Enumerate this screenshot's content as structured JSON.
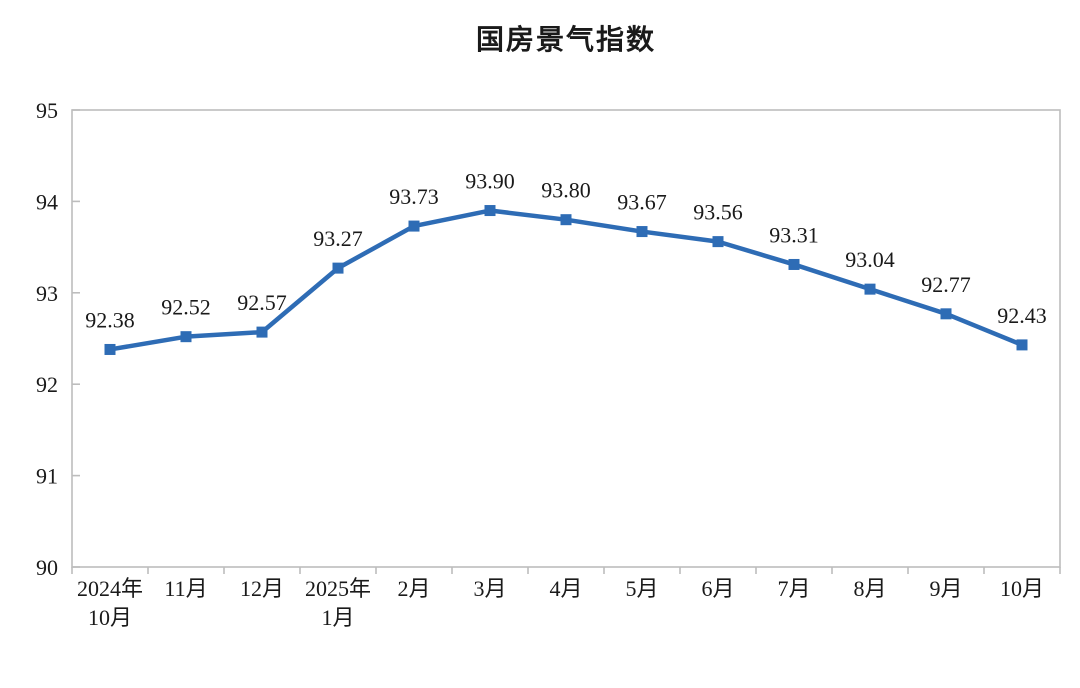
{
  "page": {
    "title": "国房景气指数"
  },
  "colors": {
    "line": "#2e6cb5",
    "marker": "#2e6cb5",
    "axis": "#bdbdbd",
    "text": "#1a1a1a",
    "background": "#ffffff"
  },
  "chart_data": {
    "type": "line",
    "title": "国房景气指数",
    "categories": [
      [
        "2024年",
        "10月"
      ],
      [
        "11月"
      ],
      [
        "12月"
      ],
      [
        "2025年",
        "1月"
      ],
      [
        "2月"
      ],
      [
        "3月"
      ],
      [
        "4月"
      ],
      [
        "5月"
      ],
      [
        "6月"
      ],
      [
        "7月"
      ],
      [
        "8月"
      ],
      [
        "9月"
      ],
      [
        "10月"
      ]
    ],
    "values": [
      92.38,
      92.52,
      92.57,
      93.27,
      93.73,
      93.9,
      93.8,
      93.67,
      93.56,
      93.31,
      93.04,
      92.77,
      92.43
    ],
    "data_labels": [
      "92.38",
      "92.52",
      "92.57",
      "93.27",
      "93.73",
      "93.90",
      "93.80",
      "93.67",
      "93.56",
      "93.31",
      "93.04",
      "92.77",
      "92.43"
    ],
    "xlabel": "",
    "ylabel": "",
    "ylim": [
      90,
      95
    ],
    "yticks": [
      90,
      91,
      92,
      93,
      94,
      95
    ],
    "grid": false,
    "legend": "none",
    "marker_style": "square",
    "line_color": "#2e6cb5"
  }
}
